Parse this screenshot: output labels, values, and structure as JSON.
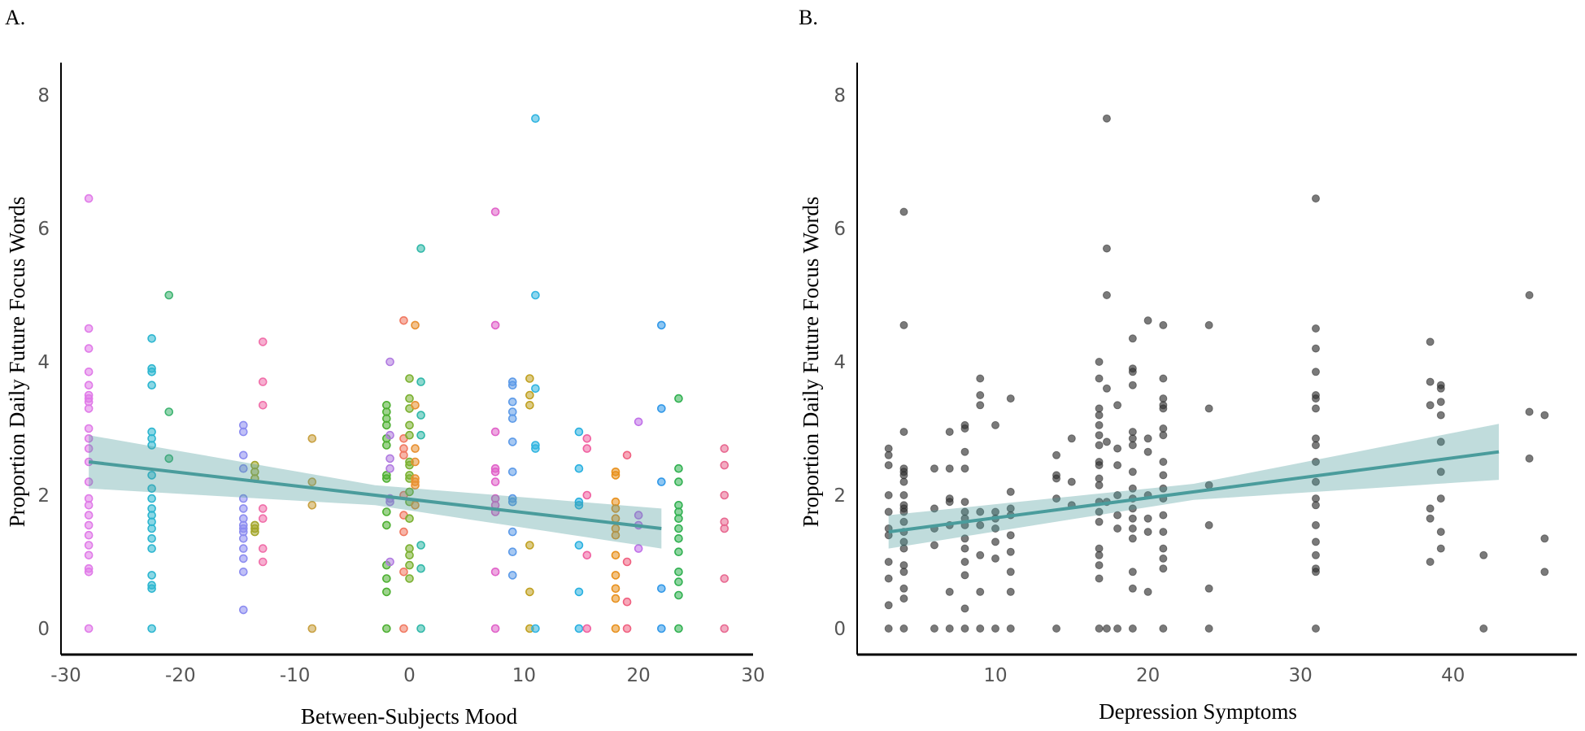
{
  "chart_data": [
    {
      "type": "scatter",
      "panel_label": "A.",
      "xlabel": "Between-Subjects Mood",
      "ylabel": "Proportion Daily Future Focus Words",
      "xlim": [
        -30,
        30
      ],
      "ylim": [
        0,
        8
      ],
      "xticks": [
        -30,
        -20,
        -10,
        0,
        10,
        20,
        30
      ],
      "yticks": [
        0,
        2,
        4,
        6,
        8
      ],
      "grid": false,
      "fit_line": {
        "x": [
          -28,
          22
        ],
        "y": [
          2.5,
          1.5
        ],
        "ci_halfwidth": [
          0.4,
          0.15,
          0.3
        ],
        "color": "#4a9c9c"
      },
      "groups": [
        {
          "x": -28,
          "color": "#e07ae8",
          "y": [
            6.45,
            4.5,
            4.2,
            3.85,
            3.65,
            3.5,
            3.45,
            3.4,
            3.3,
            3.0,
            2.85,
            2.7,
            2.5,
            2.2,
            1.95,
            1.85,
            1.7,
            1.55,
            1.4,
            1.25,
            1.1,
            0.9,
            0.85,
            0
          ]
        },
        {
          "x": -22.5,
          "color": "#2cb6d0",
          "y": [
            4.35,
            3.9,
            3.85,
            3.65,
            2.95,
            2.85,
            2.75,
            2.3,
            2.1,
            1.95,
            1.8,
            1.7,
            1.6,
            1.5,
            1.35,
            1.2,
            0.8,
            0.65,
            0.6,
            0
          ]
        },
        {
          "x": -21,
          "color": "#3db370",
          "y": [
            5.0,
            3.25,
            2.55
          ]
        },
        {
          "x": -14.5,
          "color": "#8c8cf0",
          "y": [
            3.05,
            2.95,
            2.6,
            2.4,
            1.95,
            1.8,
            1.65,
            1.55,
            1.5,
            1.45,
            1.35,
            1.2,
            1.05,
            0.85,
            0.28
          ]
        },
        {
          "x": -13.5,
          "color": "#a3a52a",
          "y": [
            2.45,
            2.35,
            2.25,
            1.55,
            1.5,
            1.45
          ]
        },
        {
          "x": -12.8,
          "color": "#f06ea9",
          "y": [
            4.3,
            3.7,
            3.35,
            1.8,
            1.65,
            1.2,
            1.0
          ]
        },
        {
          "x": -8.5,
          "color": "#c8a040",
          "y": [
            2.85,
            2.2,
            1.85,
            0
          ]
        },
        {
          "x": -2,
          "color": "#4caf30",
          "y": [
            3.35,
            3.25,
            3.15,
            3.05,
            2.85,
            2.75,
            2.3,
            2.25,
            1.75,
            1.55,
            0.95,
            0.75,
            0.55,
            0
          ]
        },
        {
          "x": -1.7,
          "color": "#b07ae0",
          "y": [
            4.0,
            2.9,
            2.55,
            2.4,
            1.95,
            1.9,
            1.0
          ]
        },
        {
          "x": -0.5,
          "color": "#f07860",
          "y": [
            4.62,
            2.85,
            2.7,
            2.6,
            2.0,
            1.7,
            1.45,
            0.85,
            0
          ]
        },
        {
          "x": 0,
          "color": "#7ab030",
          "y": [
            3.75,
            3.45,
            3.3,
            3.05,
            2.9,
            2.5,
            2.45,
            2.3,
            2.25,
            2.05,
            1.9,
            1.65,
            1.2,
            1.1,
            0.95,
            0.75
          ]
        },
        {
          "x": 0.5,
          "color": "#e89030",
          "y": [
            4.55,
            3.35,
            2.7,
            2.5,
            2.25,
            2.2,
            2.15,
            1.85
          ]
        },
        {
          "x": 1,
          "color": "#30b8a8",
          "y": [
            5.7,
            3.7,
            3.2,
            2.9,
            1.25,
            0.9,
            0
          ]
        },
        {
          "x": 7.5,
          "color": "#e060c8",
          "y": [
            6.25,
            4.55,
            2.95,
            2.4,
            2.35,
            2.2,
            1.95,
            1.85,
            1.75,
            0.85,
            0
          ]
        },
        {
          "x": 9,
          "color": "#5c9ae8",
          "y": [
            3.7,
            3.65,
            3.4,
            3.25,
            3.15,
            2.8,
            2.35,
            1.95,
            1.9,
            1.45,
            1.15,
            0.8
          ]
        },
        {
          "x": 10.5,
          "color": "#c0a020",
          "y": [
            3.75,
            3.5,
            3.35,
            1.25,
            0.55,
            0
          ]
        },
        {
          "x": 11,
          "color": "#30b4e0",
          "y": [
            7.65,
            5.0,
            3.6,
            2.75,
            2.7,
            0
          ]
        },
        {
          "x": 14.8,
          "color": "#28b0e0",
          "y": [
            2.95,
            2.4,
            1.9,
            1.85,
            1.25,
            0.55,
            0
          ]
        },
        {
          "x": 15.5,
          "color": "#f060a0",
          "y": [
            2.85,
            2.7,
            2.0,
            1.1,
            0
          ]
        },
        {
          "x": 18,
          "color": "#e8901c",
          "y": [
            2.35,
            2.3,
            1.9,
            1.8,
            1.65,
            1.5,
            1.4,
            1.1,
            0.8,
            0.6,
            0.45,
            0
          ]
        },
        {
          "x": 19,
          "color": "#f06080",
          "y": [
            2.6,
            1.0,
            0.4,
            0
          ]
        },
        {
          "x": 20,
          "color": "#c070e8",
          "y": [
            3.1,
            1.7,
            1.55,
            1.2
          ]
        },
        {
          "x": 22,
          "color": "#3098e8",
          "y": [
            4.55,
            3.3,
            2.2,
            0.6,
            0
          ]
        },
        {
          "x": 23.5,
          "color": "#30b050",
          "y": [
            3.45,
            2.4,
            2.2,
            1.85,
            1.75,
            1.65,
            1.5,
            1.35,
            1.15,
            0.85,
            0.7,
            0.5,
            0
          ]
        },
        {
          "x": 27.5,
          "color": "#e86890",
          "y": [
            2.7,
            2.45,
            2.0,
            1.6,
            1.5,
            0.75,
            0
          ]
        }
      ]
    },
    {
      "type": "scatter",
      "panel_label": "B.",
      "xlabel": "Depression Symptoms",
      "ylabel": "Proportion Daily Future Focus Words",
      "xlim": [
        1,
        48
      ],
      "ylim": [
        0,
        8
      ],
      "xticks": [
        10,
        20,
        30,
        40
      ],
      "yticks": [
        0,
        2,
        4,
        6,
        8
      ],
      "grid": false,
      "fit_line": {
        "x": [
          3,
          43
        ],
        "y": [
          1.45,
          2.65
        ],
        "ci_halfwidth": [
          0.25,
          0.12,
          0.42
        ],
        "color": "#4a9c9c"
      },
      "groups": [
        {
          "x": 3,
          "color": "#333333",
          "y": [
            2.7,
            2.6,
            2.45,
            2.0,
            1.75,
            1.5,
            1.4,
            1.0,
            0.75,
            0.35,
            0
          ]
        },
        {
          "x": 4,
          "color": "#333333",
          "y": [
            6.25,
            4.55,
            2.95,
            2.4,
            2.35,
            2.3,
            2.2,
            2.0,
            1.85,
            1.8,
            1.75,
            1.6,
            1.45,
            1.3,
            1.2,
            0.95,
            0.85,
            0.6,
            0.45,
            0
          ]
        },
        {
          "x": 6,
          "color": "#333333",
          "y": [
            2.4,
            1.8,
            1.5,
            1.25,
            0
          ]
        },
        {
          "x": 7,
          "color": "#333333",
          "y": [
            2.95,
            2.4,
            1.95,
            1.9,
            1.55,
            0.55,
            0
          ]
        },
        {
          "x": 8,
          "color": "#333333",
          "y": [
            3.05,
            3.0,
            2.65,
            2.4,
            1.9,
            1.75,
            1.65,
            1.55,
            1.35,
            1.2,
            1.0,
            0.8,
            0.3,
            0
          ]
        },
        {
          "x": 9,
          "color": "#333333",
          "y": [
            3.75,
            3.5,
            3.35,
            1.75,
            1.55,
            1.1,
            0.55,
            0
          ]
        },
        {
          "x": 10,
          "color": "#333333",
          "y": [
            3.05,
            1.75,
            1.65,
            1.5,
            1.3,
            1.05,
            0
          ]
        },
        {
          "x": 11,
          "color": "#333333",
          "y": [
            3.45,
            2.05,
            1.8,
            1.7,
            1.4,
            1.15,
            0.85,
            0.55,
            0
          ]
        },
        {
          "x": 14,
          "color": "#333333",
          "y": [
            2.6,
            2.3,
            2.25,
            1.95,
            0
          ]
        },
        {
          "x": 15,
          "color": "#333333",
          "y": [
            2.85,
            2.2,
            1.85
          ]
        },
        {
          "x": 16.8,
          "color": "#333333",
          "y": [
            4.0,
            3.75,
            3.3,
            3.2,
            3.05,
            2.9,
            2.75,
            2.5,
            2.45,
            2.25,
            2.15,
            1.9,
            1.75,
            1.6,
            1.2,
            1.1,
            0.95,
            0.75,
            0
          ]
        },
        {
          "x": 17.3,
          "color": "#333333",
          "y": [
            7.65,
            5.7,
            5.0,
            3.6,
            2.8,
            1.9,
            0
          ]
        },
        {
          "x": 18,
          "color": "#333333",
          "y": [
            3.35,
            2.7,
            2.45,
            2.0,
            1.7,
            1.5,
            0
          ]
        },
        {
          "x": 19,
          "color": "#333333",
          "y": [
            4.35,
            3.9,
            3.85,
            3.65,
            2.95,
            2.85,
            2.75,
            2.35,
            2.1,
            1.95,
            1.8,
            1.65,
            1.5,
            1.35,
            0.85,
            0.6,
            0
          ]
        },
        {
          "x": 20,
          "color": "#333333",
          "y": [
            4.62,
            2.85,
            2.65,
            2.0,
            1.65,
            1.45,
            0.55
          ]
        },
        {
          "x": 21,
          "color": "#333333",
          "y": [
            4.55,
            3.75,
            3.45,
            3.35,
            3.3,
            3.0,
            2.9,
            2.5,
            2.3,
            2.1,
            1.95,
            1.7,
            1.45,
            1.2,
            1.05,
            0.9,
            0
          ]
        },
        {
          "x": 24,
          "color": "#333333",
          "y": [
            4.55,
            3.3,
            2.15,
            1.55,
            0.6,
            0
          ]
        },
        {
          "x": 31,
          "color": "#333333",
          "y": [
            6.45,
            4.5,
            4.2,
            3.85,
            3.5,
            3.45,
            3.3,
            2.85,
            2.75,
            2.5,
            2.2,
            1.95,
            1.85,
            1.55,
            1.3,
            1.1,
            0.9,
            0.85,
            0
          ]
        },
        {
          "x": 38.5,
          "color": "#333333",
          "y": [
            4.3,
            3.7,
            3.35,
            1.8,
            1.65,
            1.0
          ]
        },
        {
          "x": 39.2,
          "color": "#333333",
          "y": [
            3.65,
            3.6,
            3.4,
            3.2,
            2.8,
            2.35,
            1.95,
            1.45,
            1.2
          ]
        },
        {
          "x": 42,
          "color": "#333333",
          "y": [
            1.1,
            0
          ]
        },
        {
          "x": 45,
          "color": "#333333",
          "y": [
            5.0,
            3.25,
            2.55
          ]
        },
        {
          "x": 46,
          "color": "#333333",
          "y": [
            3.2,
            1.35,
            0.85
          ]
        }
      ]
    }
  ]
}
